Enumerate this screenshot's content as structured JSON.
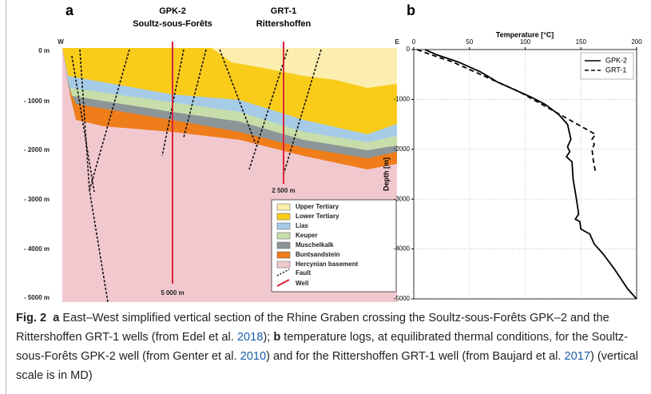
{
  "panel_a": {
    "label": "a",
    "well_1": {
      "name": "GPK-2",
      "site": "Soultz-sous-Forêts",
      "depth": "5 000 m"
    },
    "well_2": {
      "name": "GRT-1",
      "site": "Rittershoffen",
      "depth": "2 500 m"
    },
    "west": "W",
    "east": "E",
    "depth_labels": [
      "0 m",
      "- 1000 m",
      "- 2000 m",
      "- 3000 m",
      "- 4000 m",
      "- 5000 m"
    ],
    "legend": [
      "Upper Tertiary",
      "Lower Tertiary",
      "Lias",
      "Keuper",
      "Muschelkalk",
      "Buntsandstein",
      "Hercynian basement",
      "Fault",
      "Well"
    ]
  },
  "panel_b": {
    "label": "b"
  },
  "chart_data": {
    "type": "line",
    "xlabel": "Temperature [°C]",
    "ylabel": "Depth [m]",
    "xlim": [
      0,
      200
    ],
    "xticks": [
      0,
      50,
      100,
      150,
      200
    ],
    "ylim": [
      -5000,
      0
    ],
    "yticks": [
      0,
      -1000,
      -2000,
      -3000,
      -4000,
      -5000
    ],
    "grid": true,
    "legend_position": "upper-right",
    "series": [
      {
        "name": "GPK-2",
        "color": "#000000",
        "line_style": "solid",
        "x": [
          10,
          20,
          40,
          60,
          75,
          90,
          105,
          118,
          130,
          138,
          141,
          138,
          140,
          137,
          142,
          143,
          146,
          148,
          145,
          149,
          150,
          158,
          162,
          170,
          180,
          192,
          200
        ],
        "y": [
          0,
          -100,
          -250,
          -450,
          -650,
          -800,
          -950,
          -1100,
          -1300,
          -1500,
          -1800,
          -1950,
          -2050,
          -2150,
          -2250,
          -2600,
          -3000,
          -3300,
          -3400,
          -3450,
          -3600,
          -3700,
          -3900,
          -4100,
          -4400,
          -4800,
          -5000
        ]
      },
      {
        "name": "GRT-1",
        "color": "#000000",
        "line_style": "dashed",
        "x": [
          3,
          15,
          35,
          55,
          75,
          95,
          115,
          135,
          155,
          163,
          160,
          162,
          160,
          161,
          163
        ],
        "y": [
          0,
          -100,
          -250,
          -450,
          -650,
          -850,
          -1100,
          -1350,
          -1600,
          -1700,
          -1800,
          -1900,
          -2000,
          -2200,
          -2450
        ]
      }
    ]
  },
  "caption": {
    "label": "Fig. 2",
    "parts": [
      "a",
      "East–West simplified vertical section of the Rhine Graben crossing the Soultz-sous-Forêts GPK–2 and the Rittershoffen GRT-1 wells (from Edel et al.",
      "2018",
      ");",
      "b",
      "temperature logs, at equilibrated thermal conditions, for the Soultz-sous-Forêts GPK-2 well (from Genter et al.",
      "2010",
      ") and for the Rittershoffen GRT-1 well (from Baujard et al.",
      "2017",
      ") (vertical scale is in MD)"
    ]
  }
}
